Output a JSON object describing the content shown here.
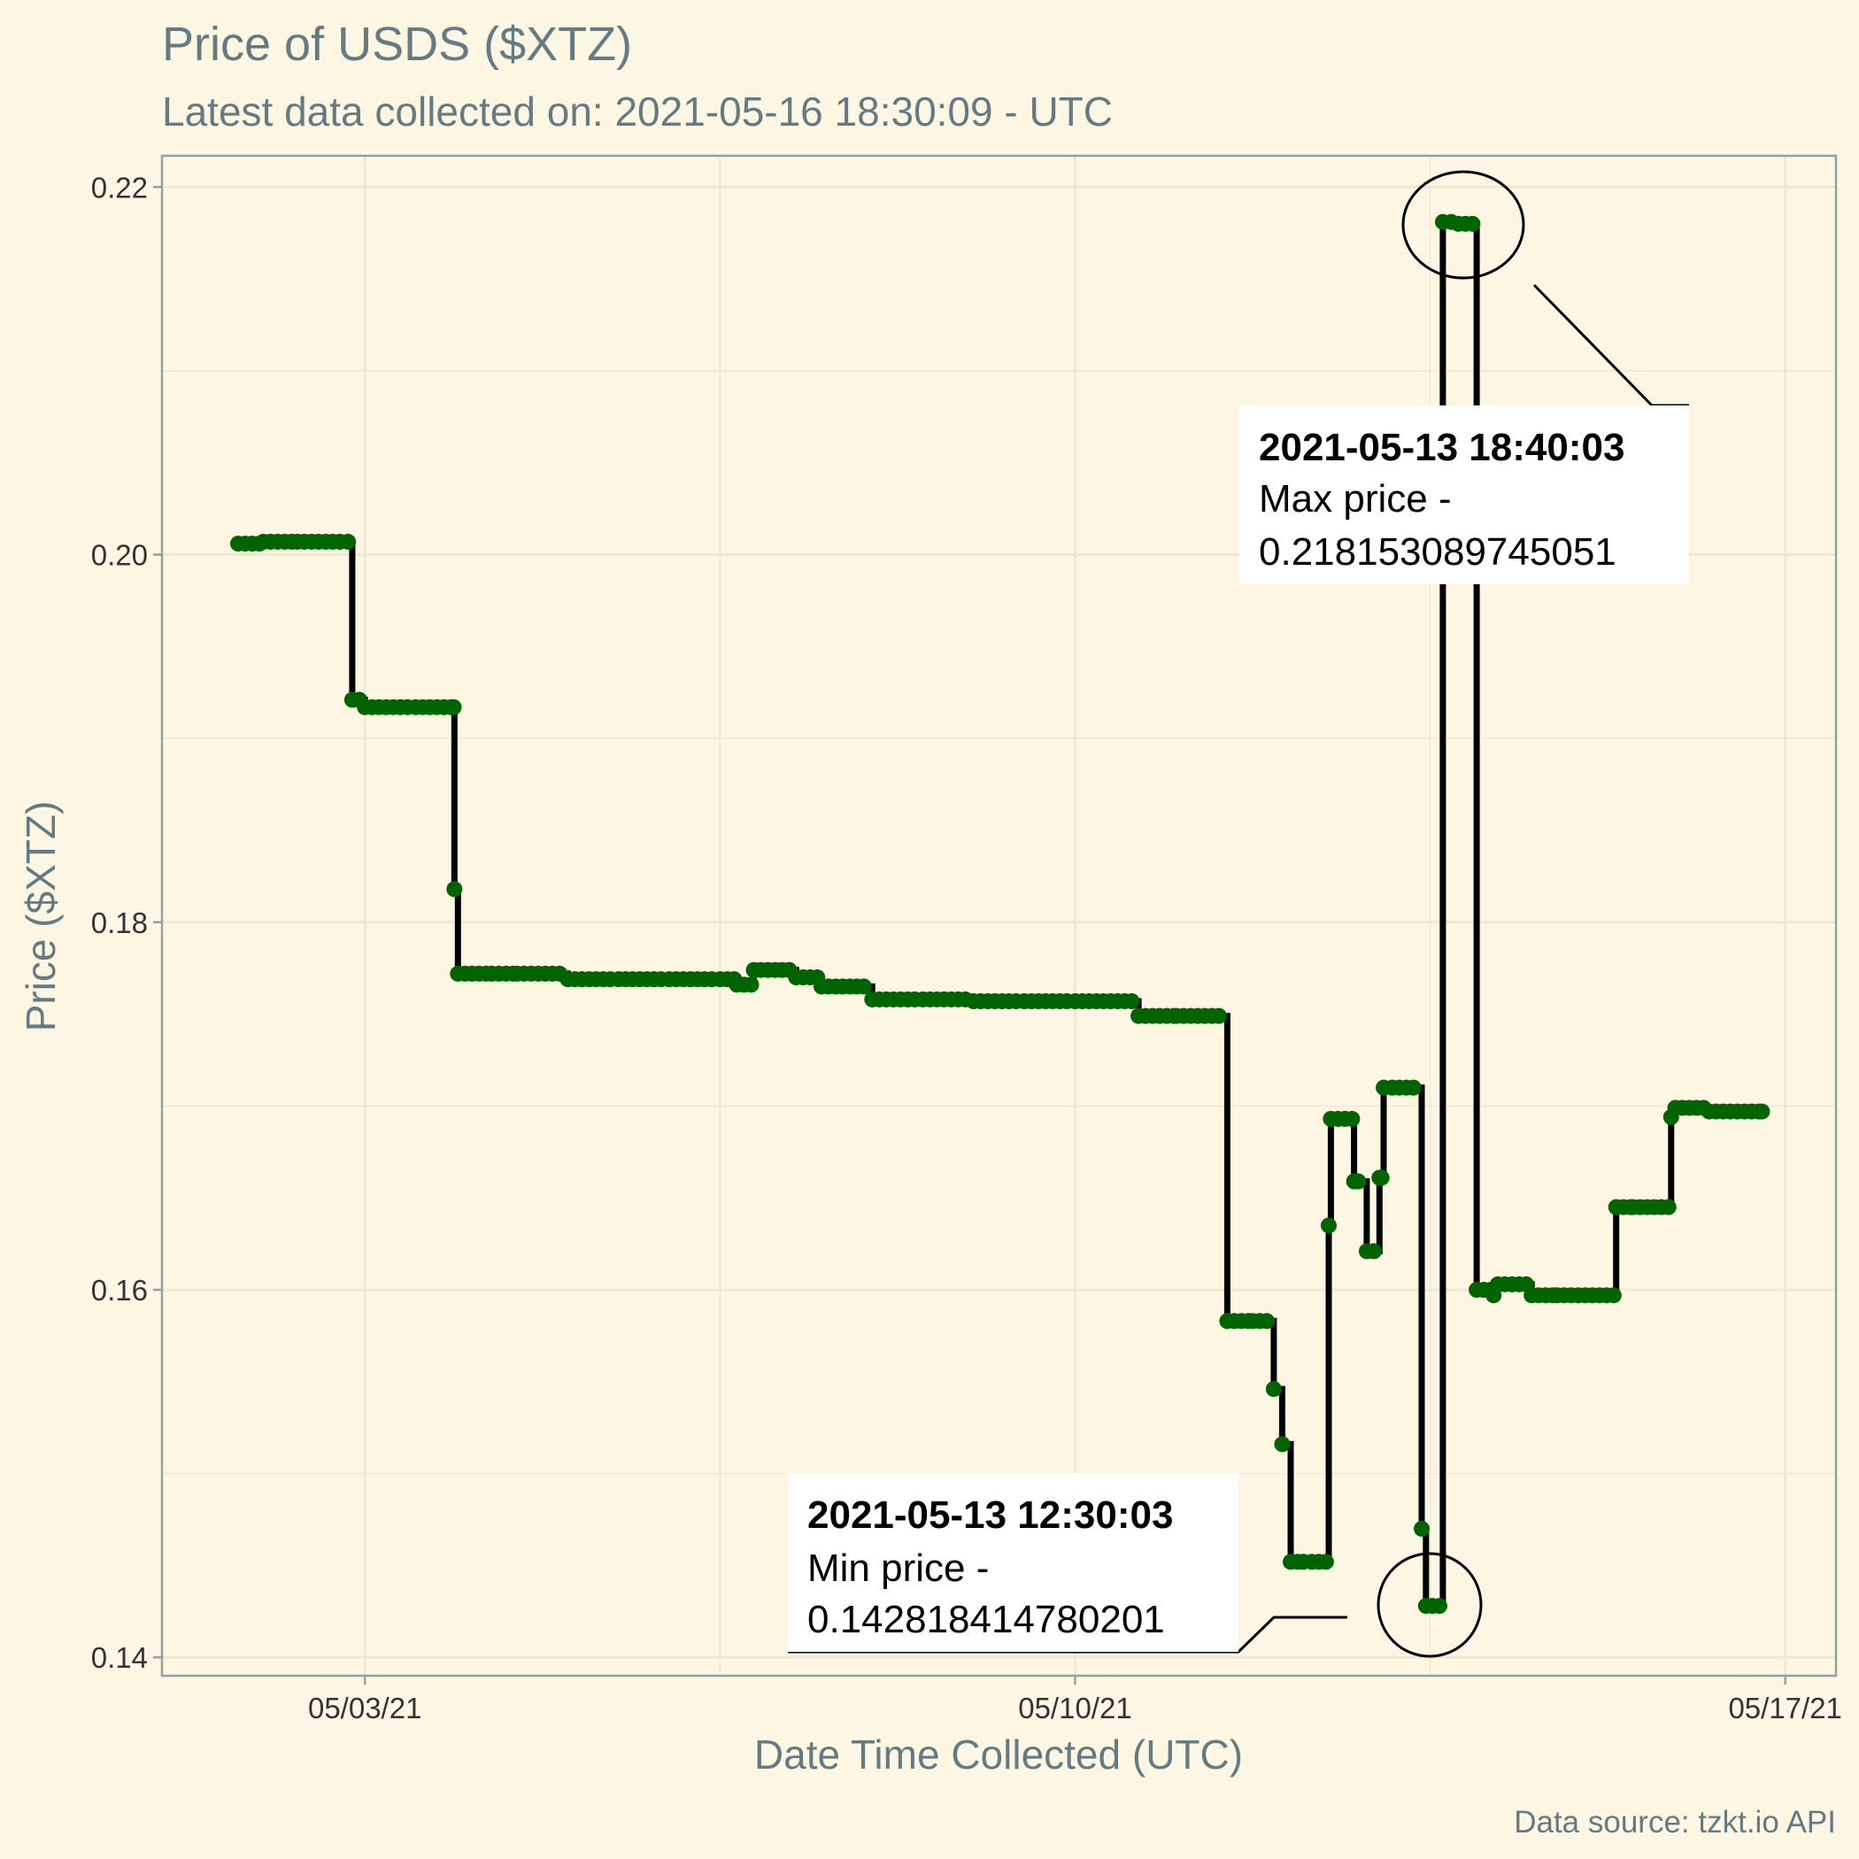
{
  "chart_data": {
    "type": "line",
    "title": "Price of USDS ($XTZ)",
    "subtitle": "Latest data collected on: 2021-05-16 18:30:09  - UTC",
    "xlabel": "Date Time Collected (UTC)",
    "ylabel": "Price ($XTZ)",
    "caption": "Data source: tzkt.io API",
    "x_tick_labels": [
      "05/03/21",
      "05/10/21",
      "05/17/21"
    ],
    "y_tick_labels": [
      "0.14",
      "0.16",
      "0.18",
      "0.20",
      "0.22"
    ],
    "xlim": [
      "2021-05-01 00:00",
      "2021-05-17 12:00"
    ],
    "ylim": [
      0.139,
      0.2217
    ],
    "grid": true,
    "line_color": "#000000",
    "point_color": "#006400",
    "step": true,
    "series": [
      {
        "x": [
          "2021-05-01 18:00",
          "2021-05-02 00:00",
          "2021-05-02 08:00",
          "2021-05-02 20:00",
          "2021-05-02 21:00",
          "2021-05-03 00:00",
          "2021-05-03 12:00",
          "2021-05-03 21:00",
          "2021-05-03 21:10",
          "2021-05-03 22:00",
          "2021-05-04 06:00",
          "2021-05-04 12:00",
          "2021-05-05 00:00",
          "2021-05-05 12:00",
          "2021-05-06 00:00",
          "2021-05-06 12:00",
          "2021-05-06 16:00",
          "2021-05-06 20:00",
          "2021-05-07 06:00",
          "2021-05-07 12:00",
          "2021-05-08 00:00",
          "2021-05-08 12:00",
          "2021-05-09 00:00",
          "2021-05-09 12:00",
          "2021-05-10 00:00",
          "2021-05-10 15:00",
          "2021-05-11 00:00",
          "2021-05-11 10:00",
          "2021-05-11 12:00",
          "2021-05-11 18:00",
          "2021-05-11 23:00",
          "2021-05-12 01:00",
          "2021-05-12 03:00",
          "2021-05-12 06:00",
          "2021-05-12 08:00",
          "2021-05-12 12:00",
          "2021-05-12 12:30",
          "2021-05-12 18:00",
          "2021-05-12 19:00",
          "2021-05-12 21:00",
          "2021-05-13 00:00",
          "2021-05-13 00:30",
          "2021-05-13 01:00",
          "2021-05-13 03:00",
          "2021-05-13 10:00",
          "2021-05-13 11:00",
          "2021-05-13 12:30",
          "2021-05-13 15:00",
          "2021-05-13 17:00",
          "2021-05-13 18:40",
          "2021-05-13 23:00",
          "2021-05-14 03:00",
          "2021-05-14 04:00",
          "2021-05-14 12:00",
          "2021-05-14 18:00",
          "2021-05-15 08:00",
          "2021-05-15 12:00",
          "2021-05-15 21:00",
          "2021-05-15 22:00",
          "2021-05-16 06:00",
          "2021-05-16 18:30"
        ],
        "y": [
          0.2006,
          0.2007,
          0.2007,
          0.2007,
          0.1921,
          0.1917,
          0.1917,
          0.1917,
          0.1818,
          0.1772,
          0.1772,
          0.1772,
          0.1769,
          0.1769,
          0.1769,
          0.1769,
          0.1766,
          0.1774,
          0.177,
          0.1765,
          0.1758,
          0.1758,
          0.1757,
          0.1757,
          0.1757,
          0.1749,
          0.1749,
          0.1749,
          0.1583,
          0.1583,
          0.1546,
          0.1516,
          0.1452,
          0.1452,
          0.1452,
          0.1635,
          0.1693,
          0.1659,
          0.1659,
          0.1621,
          0.1661,
          0.1661,
          0.171,
          0.171,
          0.147,
          0.1428,
          0.1428,
          0.2181,
          0.2181,
          0.218,
          0.16,
          0.1597,
          0.1603,
          0.1597,
          0.1597,
          0.1645,
          0.1645,
          0.1694,
          0.1699,
          0.1697,
          0.1697
        ]
      }
    ],
    "annotations": [
      {
        "datetime": "2021-05-13 18:40:03",
        "label": "Max price -",
        "value": "0.218153089745051",
        "x": "2021-05-13 18:40",
        "y": 0.2181
      },
      {
        "datetime": "2021-05-13 12:30:03",
        "label": "Min price -",
        "value": "0.142818414780201",
        "x": "2021-05-13 12:30",
        "y": 0.1428
      }
    ]
  }
}
